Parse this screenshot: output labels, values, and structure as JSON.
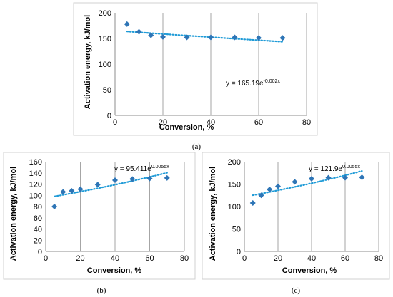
{
  "chart_data": [
    {
      "panel": "(a)",
      "type": "scatter",
      "xlabel": "Conversion, %",
      "ylabel": "Activation energy, kJ/mol",
      "xlim": [
        0,
        80
      ],
      "ylim": [
        0,
        200
      ],
      "xticks": [
        0,
        20,
        40,
        60,
        80
      ],
      "yticks": [
        0,
        50,
        100,
        150,
        200
      ],
      "x": [
        5,
        10,
        15,
        20,
        30,
        40,
        50,
        60,
        70
      ],
      "y": [
        178,
        163,
        156,
        153,
        152,
        152,
        152,
        151,
        151
      ],
      "trendline": {
        "type": "exponential",
        "a": 165.19,
        "b": -0.002
      },
      "equation": {
        "base": "y = 165.19e",
        "exp": "-0.002x"
      },
      "grid": "vertical",
      "marker_color": "#2e75b6",
      "trend_color": "#1f9bd7"
    },
    {
      "panel": "(b)",
      "type": "scatter",
      "xlabel": "Conversion, %",
      "ylabel": "Activation energy, kJ/mol",
      "xlim": [
        0,
        80
      ],
      "ylim": [
        0,
        160
      ],
      "xticks": [
        0,
        20,
        40,
        60,
        80
      ],
      "yticks": [
        0,
        20,
        40,
        60,
        80,
        100,
        120,
        140,
        160
      ],
      "x": [
        5,
        10,
        15,
        20,
        30,
        40,
        50,
        60,
        70
      ],
      "y": [
        80,
        106,
        108,
        111,
        119,
        127,
        129,
        130,
        131
      ],
      "trendline": {
        "type": "exponential",
        "a": 95.411,
        "b": 0.0055
      },
      "equation": {
        "base": "y = 95.411e",
        "exp": "0.0055x"
      },
      "grid": "vertical",
      "marker_color": "#2e75b6",
      "trend_color": "#1f9bd7"
    },
    {
      "panel": "(c)",
      "type": "scatter",
      "xlabel": "Conversion, %",
      "ylabel": "Activation energy, kJ/mol",
      "xlim": [
        0,
        80
      ],
      "ylim": [
        0,
        200
      ],
      "xticks": [
        0,
        20,
        40,
        60,
        80
      ],
      "yticks": [
        0,
        50,
        100,
        150,
        200
      ],
      "x": [
        5,
        10,
        15,
        20,
        30,
        40,
        50,
        60,
        70
      ],
      "y": [
        108,
        125,
        138,
        145,
        155,
        162,
        164,
        164,
        165
      ],
      "trendline": {
        "type": "exponential",
        "a": 121.9,
        "b": 0.0055
      },
      "equation": {
        "base": "y = 121.9e",
        "exp": "0.0055x"
      },
      "grid": "vertical",
      "marker_color": "#2e75b6",
      "trend_color": "#1f9bd7"
    }
  ],
  "captions": {
    "a": "(a)",
    "b": "(b)",
    "c": "(c)"
  }
}
